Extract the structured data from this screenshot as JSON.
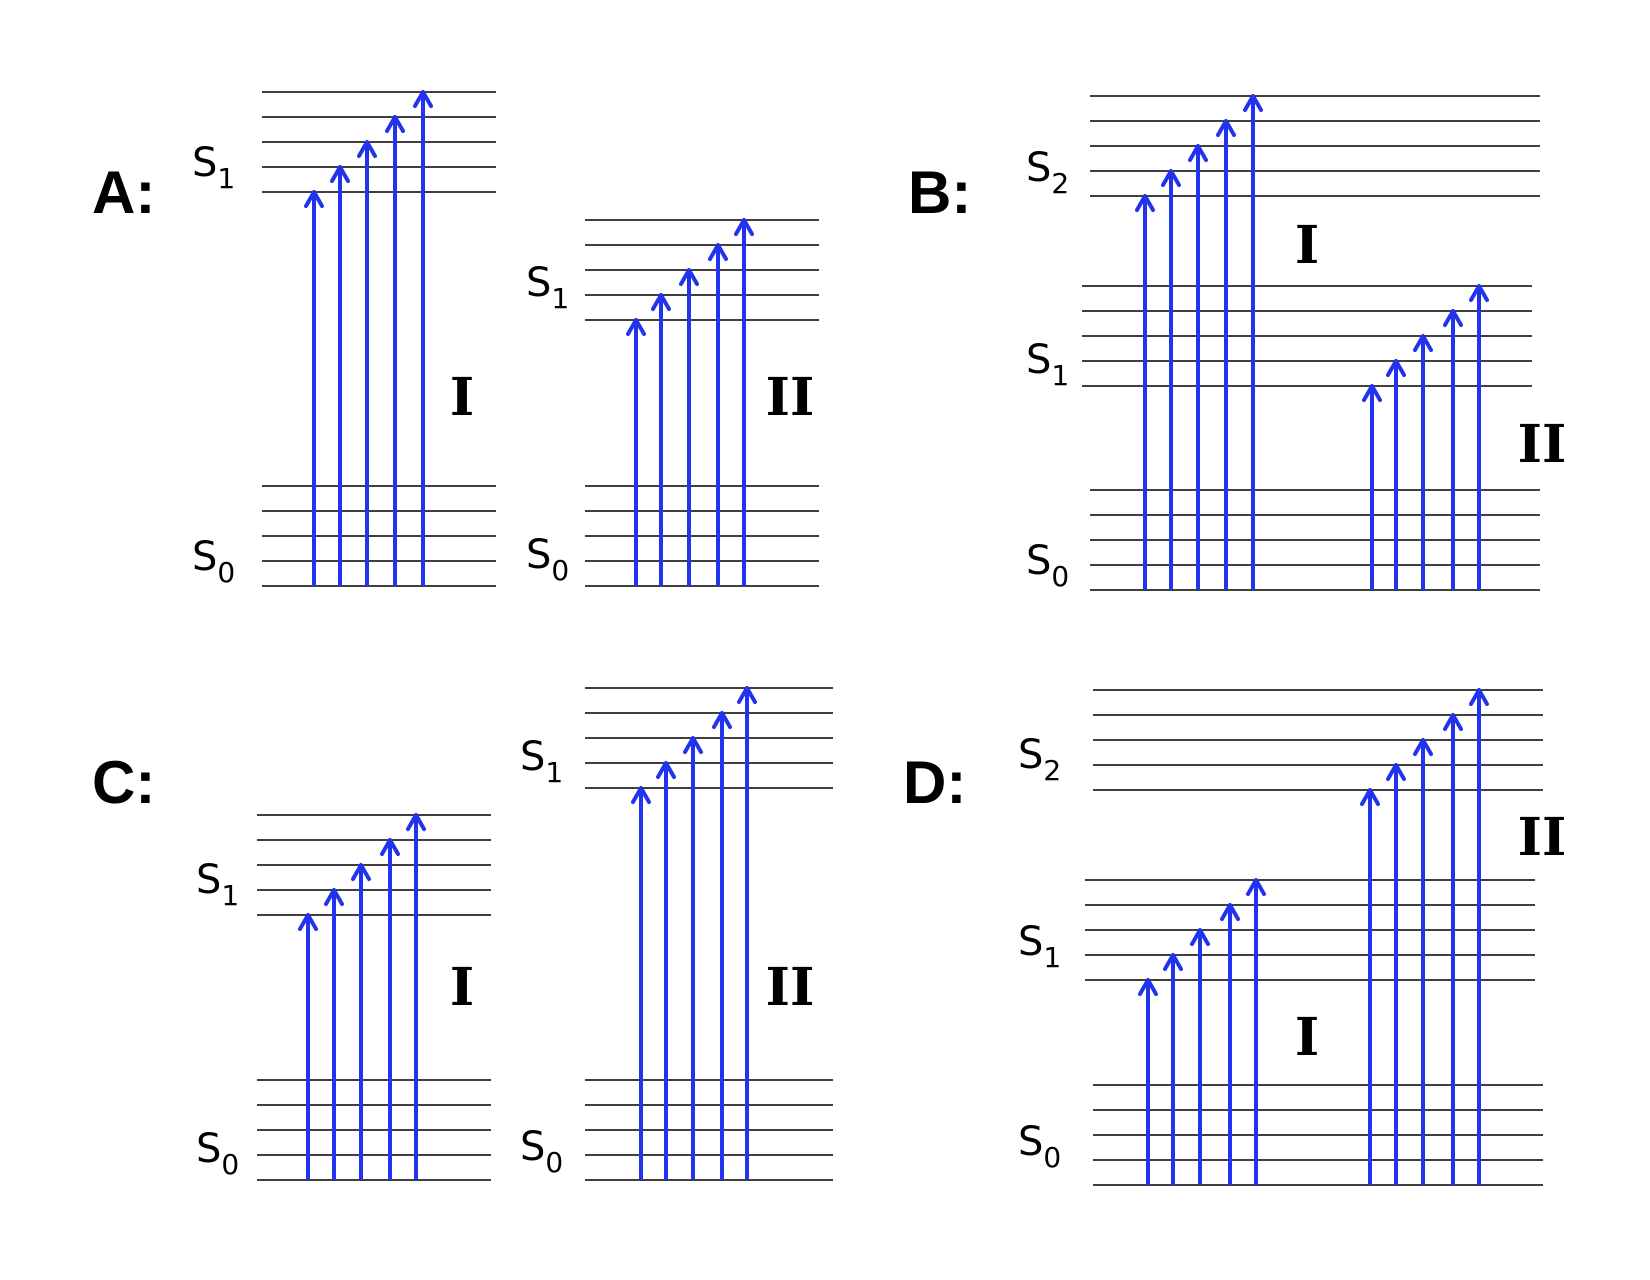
{
  "colors": {
    "arrow": "#2233ee",
    "level": "#000000",
    "background": "#ffffff"
  },
  "panels": [
    {
      "label": "A:",
      "diagrams": [
        {
          "roman": "I",
          "states": [
            {
              "name": "S",
              "sub": "1"
            },
            {
              "name": "S",
              "sub": "0"
            }
          ]
        },
        {
          "roman": "II",
          "states": [
            {
              "name": "S",
              "sub": "1"
            },
            {
              "name": "S",
              "sub": "0"
            }
          ]
        }
      ]
    },
    {
      "label": "B:",
      "diagrams": [
        {
          "roman": "I"
        },
        {
          "roman": "II"
        }
      ],
      "states": [
        {
          "name": "S",
          "sub": "2"
        },
        {
          "name": "S",
          "sub": "1"
        },
        {
          "name": "S",
          "sub": "0"
        }
      ]
    },
    {
      "label": "C:",
      "diagrams": [
        {
          "roman": "I",
          "states": [
            {
              "name": "S",
              "sub": "1"
            },
            {
              "name": "S",
              "sub": "0"
            }
          ]
        },
        {
          "roman": "II",
          "states": [
            {
              "name": "S",
              "sub": "1"
            },
            {
              "name": "S",
              "sub": "0"
            }
          ]
        }
      ]
    },
    {
      "label": "D:",
      "diagrams": [
        {
          "roman": "I"
        },
        {
          "roman": "II"
        }
      ],
      "states": [
        {
          "name": "S",
          "sub": "2"
        },
        {
          "name": "S",
          "sub": "1"
        },
        {
          "name": "S",
          "sub": "0"
        }
      ]
    }
  ]
}
